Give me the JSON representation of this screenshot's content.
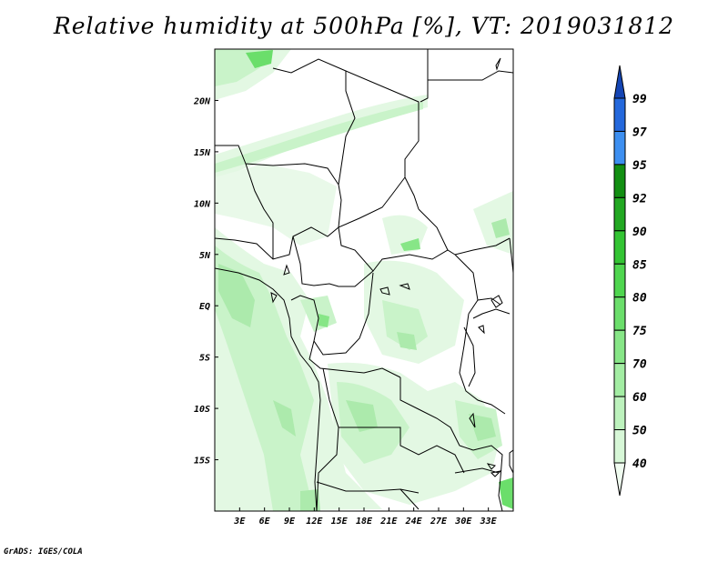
{
  "title": "Relative humidity at 500hPa [%], VT: 2019031812",
  "credit": "GrADS: IGES/COLA",
  "map": {
    "lon_range": [
      0,
      36
    ],
    "lat_range": [
      -20,
      25
    ],
    "lon_ticks": [
      "3E",
      "6E",
      "9E",
      "12E",
      "15E",
      "18E",
      "21E",
      "24E",
      "27E",
      "30E",
      "33E"
    ],
    "lat_ticks": [
      "20N",
      "15N",
      "10N",
      "5N",
      "EQ",
      "5S",
      "10S",
      "15S"
    ]
  },
  "colorbar": {
    "levels": [
      "40",
      "50",
      "60",
      "70",
      "75",
      "80",
      "85",
      "90",
      "92",
      "95",
      "97",
      "99"
    ],
    "colors": [
      "#f0fcf0",
      "#d7f7d7",
      "#bdf2bd",
      "#a3eda3",
      "#87e687",
      "#6bde6b",
      "#4fd64f",
      "#33c433",
      "#22a822",
      "#128f12",
      "#3d8ff0",
      "#2468dc",
      "#1445b4"
    ]
  }
}
